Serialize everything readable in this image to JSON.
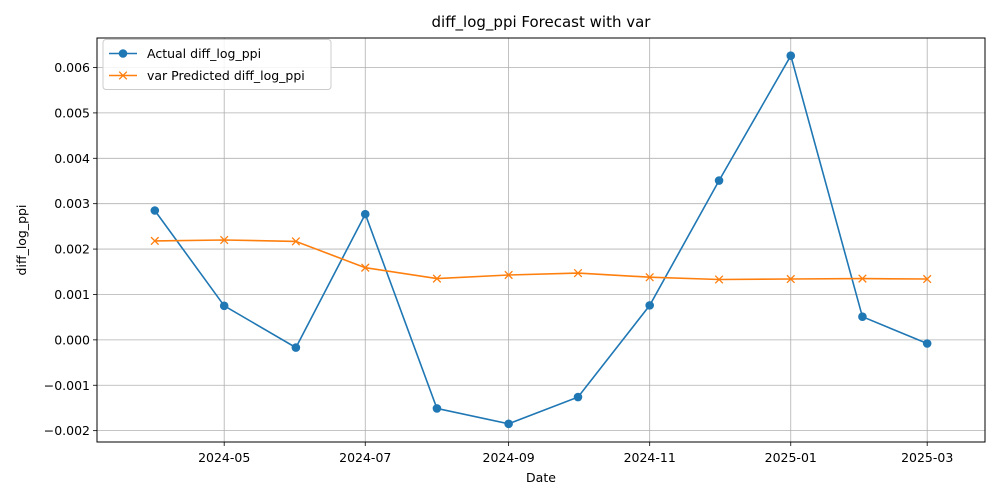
{
  "chart_data": {
    "type": "line",
    "title": "diff_log_ppi Forecast with var",
    "xlabel": "Date",
    "ylabel": "diff_log_ppi",
    "x": [
      "2024-04-01",
      "2024-05-01",
      "2024-06-01",
      "2024-07-01",
      "2024-08-01",
      "2024-09-01",
      "2024-10-01",
      "2024-11-01",
      "2024-12-01",
      "2025-01-01",
      "2025-02-01",
      "2025-03-01"
    ],
    "xlim": [
      "2024-03-07",
      "2025-03-26"
    ],
    "ylim": [
      -0.00225,
      0.00665
    ],
    "x_ticks": [
      "2024-05-01",
      "2024-07-01",
      "2024-09-01",
      "2024-11-01",
      "2025-01-01",
      "2025-03-01"
    ],
    "x_tick_labels": [
      "2024-05",
      "2024-07",
      "2024-09",
      "2024-11",
      "2025-01",
      "2025-03"
    ],
    "y_ticks": [
      -0.002,
      -0.001,
      0.0,
      0.001,
      0.002,
      0.003,
      0.004,
      0.005,
      0.006
    ],
    "y_tick_labels": [
      "−0.002",
      "−0.001",
      "0.000",
      "0.001",
      "0.002",
      "0.003",
      "0.004",
      "0.005",
      "0.006"
    ],
    "grid": true,
    "legend_position": "upper-left",
    "series": [
      {
        "name": "Actual diff_log_ppi",
        "color": "#1f77b4",
        "marker": "circle",
        "values": [
          0.00285,
          0.00075,
          -0.00017,
          0.00277,
          -0.00151,
          -0.00185,
          -0.00126,
          0.00076,
          0.00351,
          0.00626,
          0.00051,
          -8e-05
        ]
      },
      {
        "name": "var Predicted diff_log_ppi",
        "color": "#ff7f0e",
        "marker": "x",
        "values": [
          0.00218,
          0.0022,
          0.00217,
          0.00159,
          0.00135,
          0.00143,
          0.00147,
          0.00138,
          0.00133,
          0.00134,
          0.00135,
          0.00134
        ]
      }
    ]
  }
}
